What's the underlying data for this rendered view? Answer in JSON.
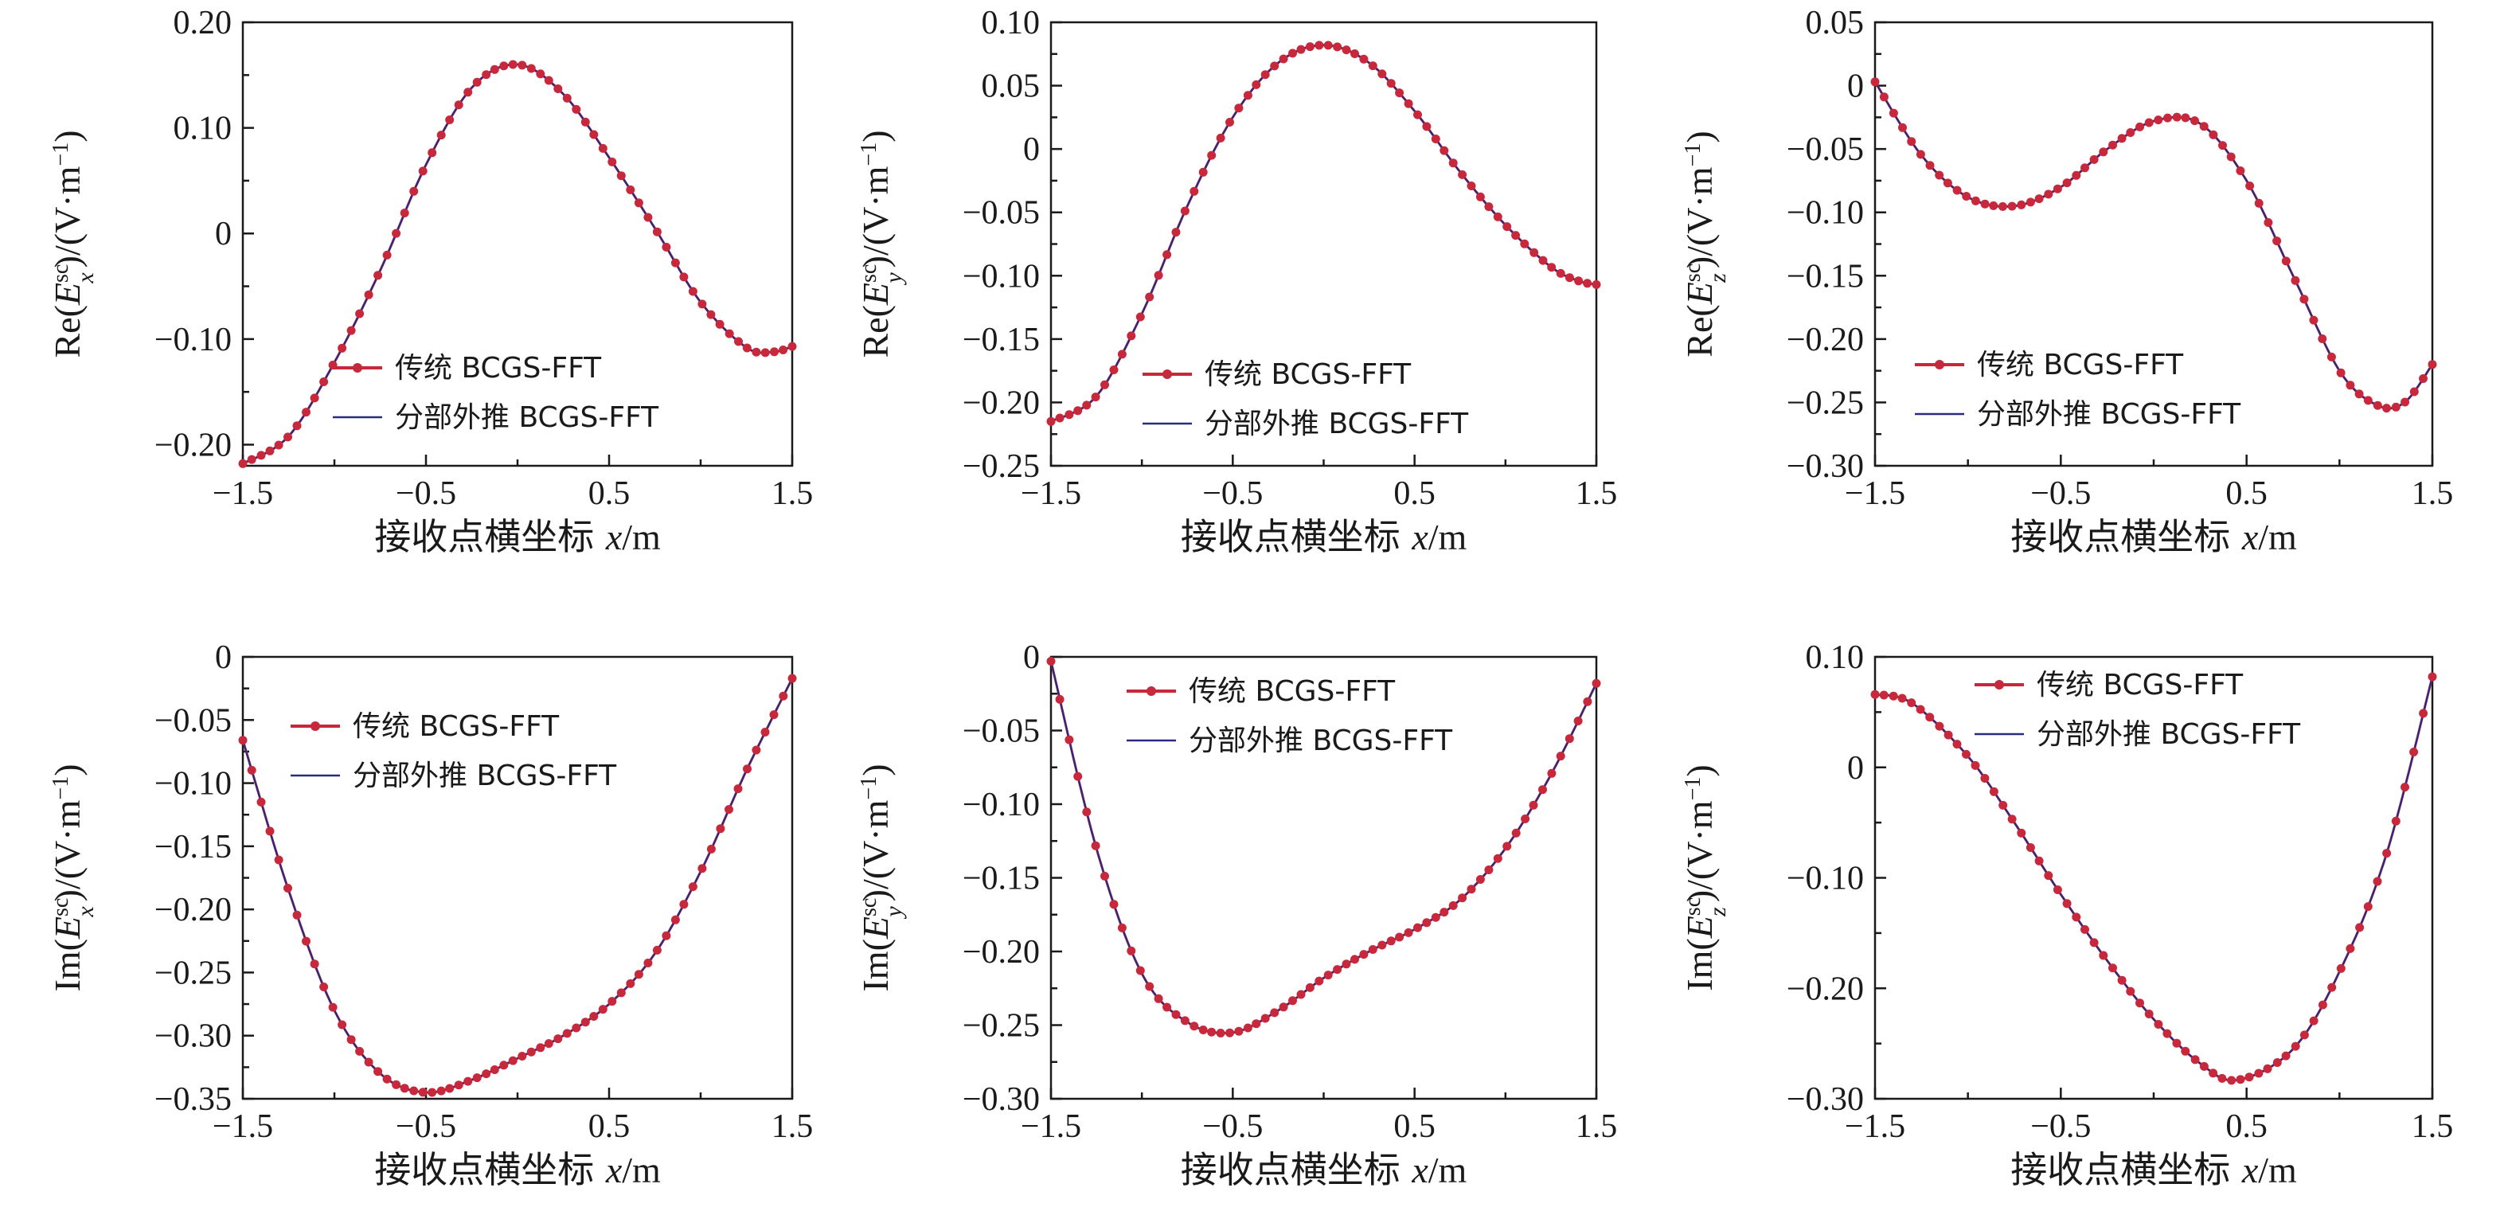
{
  "legend": {
    "series1": "传统 BCGS-FFT",
    "series2": "分部外推 BCGS-FFT",
    "series1_color": "#c8283c",
    "series2_color": "#2a2a80"
  },
  "xlabel": {
    "text": "接收点横坐标 ",
    "var": "x",
    "unit": "/m"
  },
  "chart_data": [
    {
      "type": "line",
      "ylabel": {
        "pre": "Re(",
        "E": "E",
        "sup": "sc",
        "sub": "x",
        "post": ")/(V·m",
        "exp": "−1",
        "end": ")"
      },
      "xlim": [
        -1.5,
        1.5
      ],
      "ylim": [
        -0.22,
        0.2
      ],
      "xticks": [
        -1.5,
        -0.5,
        0.5,
        1.5
      ],
      "xtick_labels": [
        "−1.5",
        "−0.5",
        "0.5",
        "1.5"
      ],
      "yticks": [
        -0.2,
        -0.1,
        0,
        0.1,
        0.2
      ],
      "ytick_labels": [
        "−0.20",
        "−0.10",
        "0",
        "0.10",
        "0.20"
      ],
      "x": [
        -1.5,
        -1.25,
        -1.0,
        -0.75,
        -0.5,
        -0.25,
        0.0,
        0.25,
        0.5,
        0.75,
        1.0,
        1.25,
        1.4,
        1.5
      ],
      "y": [
        -0.218,
        -0.192,
        -0.122,
        -0.035,
        0.065,
        0.138,
        0.16,
        0.132,
        0.072,
        0.005,
        -0.065,
        -0.108,
        -0.112,
        -0.107
      ],
      "series": [
        {
          "name": "传统 BCGS-FFT"
        },
        {
          "name": "分部外推 BCGS-FFT"
        }
      ]
    },
    {
      "type": "line",
      "ylabel": {
        "pre": "Re(",
        "E": "E",
        "sup": "sc",
        "sub": "y",
        "post": ")/(V·m",
        "exp": "−1",
        "end": ")"
      },
      "xlim": [
        -1.5,
        1.5
      ],
      "ylim": [
        -0.25,
        0.1
      ],
      "xticks": [
        -1.5,
        -0.5,
        0.5,
        1.5
      ],
      "xtick_labels": [
        "−1.5",
        "−0.5",
        "0.5",
        "1.5"
      ],
      "yticks": [
        -0.25,
        -0.2,
        -0.15,
        -0.1,
        -0.05,
        0,
        0.05,
        0.1
      ],
      "ytick_labels": [
        "−0.25",
        "−0.20",
        "−0.15",
        "−0.10",
        "−0.05",
        "0",
        "0.05",
        "0.10"
      ],
      "x": [
        -1.5,
        -1.25,
        -1.0,
        -0.75,
        -0.5,
        -0.25,
        0.0,
        0.25,
        0.5,
        0.75,
        1.0,
        1.25,
        1.4,
        1.5
      ],
      "y": [
        -0.215,
        -0.195,
        -0.13,
        -0.045,
        0.025,
        0.068,
        0.082,
        0.068,
        0.03,
        -0.018,
        -0.06,
        -0.093,
        -0.104,
        -0.107
      ],
      "series": [
        {
          "name": "传统 BCGS-FFT"
        },
        {
          "name": "分部外推 BCGS-FFT"
        }
      ]
    },
    {
      "type": "line",
      "ylabel": {
        "pre": "Re(",
        "E": "E",
        "sup": "sc",
        "sub": "z",
        "post": ")/(V·m",
        "exp": "−1",
        "end": ")"
      },
      "xlim": [
        -1.5,
        1.5
      ],
      "ylim": [
        -0.3,
        0.05
      ],
      "xticks": [
        -1.5,
        -0.5,
        0.5,
        1.5
      ],
      "xtick_labels": [
        "−1.5",
        "−0.5",
        "0.5",
        "1.5"
      ],
      "yticks": [
        -0.3,
        -0.25,
        -0.2,
        -0.15,
        -0.1,
        -0.05,
        0,
        0.05
      ],
      "ytick_labels": [
        "−0.30",
        "−0.25",
        "−0.20",
        "−0.15",
        "−0.10",
        "−0.05",
        "0",
        "0.05"
      ],
      "x": [
        -1.5,
        -1.25,
        -1.0,
        -0.75,
        -0.5,
        -0.25,
        0.0,
        0.25,
        0.5,
        0.75,
        1.0,
        1.2,
        1.35,
        1.5
      ],
      "y": [
        0.003,
        -0.055,
        -0.088,
        -0.095,
        -0.08,
        -0.05,
        -0.028,
        -0.03,
        -0.075,
        -0.15,
        -0.225,
        -0.252,
        -0.25,
        -0.22
      ],
      "series": [
        {
          "name": "传统 BCGS-FFT"
        },
        {
          "name": "分部外推 BCGS-FFT"
        }
      ]
    },
    {
      "type": "line",
      "ylabel": {
        "pre": "Im(",
        "E": "E",
        "sup": "sc",
        "sub": "x",
        "post": ")/(V·m",
        "exp": "−1",
        "end": ")"
      },
      "xlim": [
        -1.5,
        1.5
      ],
      "ylim": [
        -0.35,
        0
      ],
      "xticks": [
        -1.5,
        -0.5,
        0.5,
        1.5
      ],
      "xtick_labels": [
        "−1.5",
        "−0.5",
        "0.5",
        "1.5"
      ],
      "yticks": [
        -0.35,
        -0.3,
        -0.25,
        -0.2,
        -0.15,
        -0.1,
        -0.05,
        0
      ],
      "ytick_labels": [
        "−0.35",
        "−0.30",
        "−0.25",
        "−0.20",
        "−0.15",
        "−0.10",
        "−0.05",
        "0"
      ],
      "x": [
        -1.5,
        -1.25,
        -1.0,
        -0.75,
        -0.5,
        -0.25,
        0.0,
        0.25,
        0.5,
        0.75,
        1.0,
        1.25,
        1.5
      ],
      "y": [
        -0.066,
        -0.185,
        -0.28,
        -0.33,
        -0.345,
        -0.335,
        -0.318,
        -0.3,
        -0.275,
        -0.235,
        -0.17,
        -0.09,
        -0.017
      ],
      "series": [
        {
          "name": "传统 BCGS-FFT"
        },
        {
          "name": "分部外推 BCGS-FFT"
        }
      ]
    },
    {
      "type": "line",
      "ylabel": {
        "pre": "Im(",
        "E": "E",
        "sup": "sc",
        "sub": "y",
        "post": ")/(V·m",
        "exp": "−1",
        "end": ")"
      },
      "xlim": [
        -1.5,
        1.5
      ],
      "ylim": [
        -0.3,
        0
      ],
      "xticks": [
        -1.5,
        -0.5,
        0.5,
        1.5
      ],
      "xtick_labels": [
        "−1.5",
        "−0.5",
        "0.5",
        "1.5"
      ],
      "yticks": [
        -0.3,
        -0.25,
        -0.2,
        -0.15,
        -0.1,
        -0.05,
        0
      ],
      "ytick_labels": [
        "−0.30",
        "−0.25",
        "−0.20",
        "−0.15",
        "−0.10",
        "−0.05",
        "0"
      ],
      "x": [
        -1.5,
        -1.25,
        -1.0,
        -0.75,
        -0.5,
        -0.25,
        0.0,
        0.25,
        0.5,
        0.75,
        1.0,
        1.25,
        1.5
      ],
      "y": [
        -0.003,
        -0.13,
        -0.215,
        -0.248,
        -0.255,
        -0.24,
        -0.218,
        -0.2,
        -0.185,
        -0.165,
        -0.13,
        -0.08,
        -0.018
      ],
      "series": [
        {
          "name": "传统 BCGS-FFT"
        },
        {
          "name": "分部外推 BCGS-FFT"
        }
      ]
    },
    {
      "type": "line",
      "ylabel": {
        "pre": "Im(",
        "E": "E",
        "sup": "sc",
        "sub": "z",
        "post": ")/(V·m",
        "exp": "−1",
        "end": ")"
      },
      "xlim": [
        -1.5,
        1.5
      ],
      "ylim": [
        -0.3,
        0.1
      ],
      "xticks": [
        -1.5,
        -0.5,
        0.5,
        1.5
      ],
      "xtick_labels": [
        "−1.5",
        "−0.5",
        "0.5",
        "1.5"
      ],
      "yticks": [
        -0.3,
        -0.2,
        -0.1,
        0,
        0.1
      ],
      "ytick_labels": [
        "−0.30",
        "−0.20",
        "−0.10",
        "0",
        "0.10"
      ],
      "x": [
        -1.5,
        -1.3,
        -1.0,
        -0.75,
        -0.5,
        -0.25,
        0.0,
        0.25,
        0.45,
        0.75,
        1.0,
        1.25,
        1.5
      ],
      "y": [
        0.066,
        0.058,
        0.01,
        -0.05,
        -0.115,
        -0.175,
        -0.228,
        -0.268,
        -0.283,
        -0.255,
        -0.185,
        -0.08,
        0.082
      ]
    }
  ]
}
